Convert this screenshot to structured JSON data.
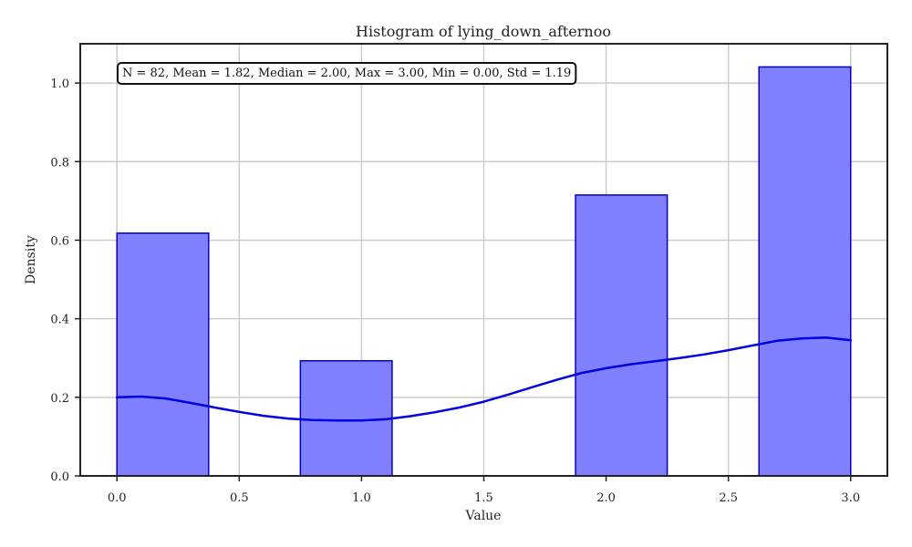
{
  "chart_data": {
    "type": "bar",
    "title": "Histogram of lying_down_afternoo",
    "xlabel": "Value",
    "ylabel": "Density",
    "xlim": [
      -0.15,
      3.15
    ],
    "ylim": [
      0,
      1.1
    ],
    "x_ticks": [
      0.0,
      0.5,
      1.0,
      1.5,
      2.0,
      2.5,
      3.0
    ],
    "x_tick_labels": [
      "0.0",
      "0.5",
      "1.0",
      "1.5",
      "2.0",
      "2.5",
      "3.0"
    ],
    "y_ticks": [
      0.0,
      0.2,
      0.4,
      0.6,
      0.8,
      1.0
    ],
    "y_tick_labels": [
      "0.0",
      "0.2",
      "0.4",
      "0.6",
      "0.8",
      "1.0"
    ],
    "grid": true,
    "bins": [
      {
        "x0": 0.0,
        "x1": 0.375,
        "density": 0.618
      },
      {
        "x0": 0.75,
        "x1": 1.125,
        "density": 0.293
      },
      {
        "x0": 1.875,
        "x1": 2.25,
        "density": 0.715
      },
      {
        "x0": 2.625,
        "x1": 3.0,
        "density": 1.041
      }
    ],
    "kde": {
      "x": [
        0.0,
        0.1,
        0.2,
        0.3,
        0.4,
        0.5,
        0.6,
        0.7,
        0.8,
        0.9,
        1.0,
        1.1,
        1.2,
        1.3,
        1.4,
        1.5,
        1.6,
        1.7,
        1.8,
        1.9,
        2.0,
        2.1,
        2.2,
        2.3,
        2.4,
        2.5,
        2.6,
        2.7,
        2.8,
        2.9,
        3.0
      ],
      "y": [
        0.2,
        0.202,
        0.197,
        0.186,
        0.174,
        0.163,
        0.153,
        0.146,
        0.142,
        0.141,
        0.141,
        0.144,
        0.152,
        0.162,
        0.174,
        0.189,
        0.207,
        0.226,
        0.245,
        0.262,
        0.274,
        0.284,
        0.292,
        0.3,
        0.309,
        0.32,
        0.332,
        0.344,
        0.35,
        0.352,
        0.345
      ]
    },
    "stats_box": "N = 82, Mean = 1.82, Median = 2.00, Max = 3.00, Min = 0.00, Std = 1.19",
    "colors": {
      "bar_fill": "#8080ff",
      "bar_edge": "#0000cc",
      "kde_line": "#0000e0",
      "grid": "#cccccc",
      "axes": "#222222"
    }
  }
}
